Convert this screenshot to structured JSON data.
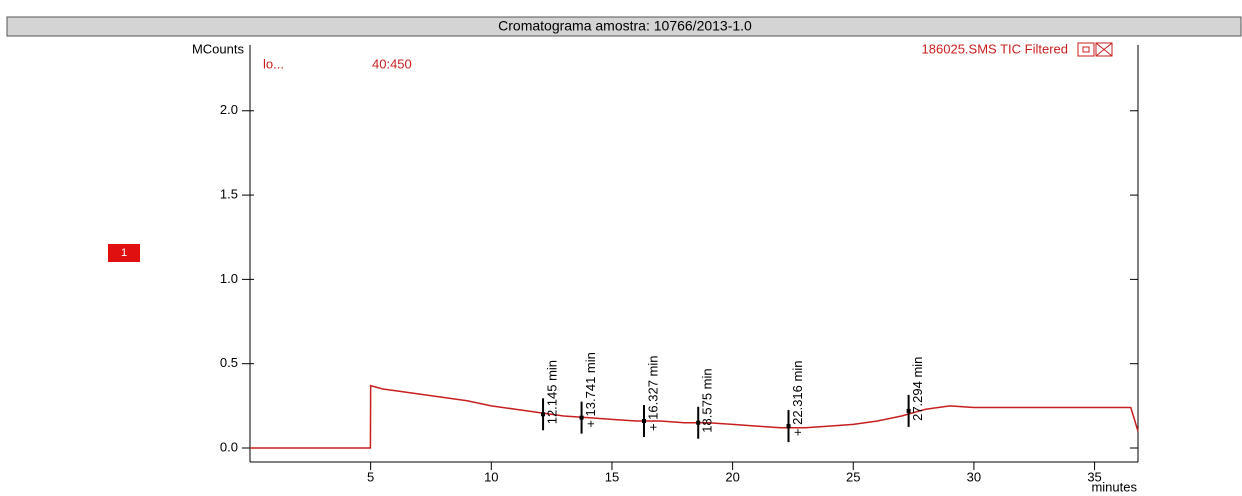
{
  "chart_data": {
    "type": "line",
    "title": "Cromatograma amostra: 10766/2013-1.0",
    "y_label": "MCounts",
    "x_label": "minutes",
    "channel": "lo...",
    "ion_range": "40:450",
    "file_label": "186025.SMS TIC Filtered",
    "trace_marker": "1",
    "xlim": [
      0,
      36.8
    ],
    "ylim": [
      -0.083,
      2.39
    ],
    "xticks": [
      5,
      10,
      15,
      20,
      25,
      30,
      35
    ],
    "yticks": [
      {
        "value": 0,
        "label": "0.0"
      },
      {
        "value": 0.5,
        "label": "0.5"
      },
      {
        "value": 1,
        "label": "1.0"
      },
      {
        "value": 1.5,
        "label": "1.5"
      },
      {
        "value": 2,
        "label": "2.0"
      }
    ],
    "series": [
      {
        "color": "#c81e1e",
        "x": [
          0,
          4.99,
          5,
          5.5,
          6,
          7,
          8,
          9,
          10,
          11,
          12,
          13,
          14,
          15,
          16,
          17,
          18,
          19,
          20,
          21,
          22,
          23,
          24,
          25,
          26,
          27,
          28,
          29,
          30,
          31,
          32,
          33,
          34,
          35,
          36,
          36.5,
          36.8
        ],
        "values": [
          0,
          0,
          0.37,
          0.35,
          0.34,
          0.32,
          0.3,
          0.28,
          0.25,
          0.23,
          0.21,
          0.19,
          0.18,
          0.17,
          0.16,
          0.16,
          0.15,
          0.15,
          0.14,
          0.13,
          0.12,
          0.12,
          0.13,
          0.14,
          0.16,
          0.19,
          0.23,
          0.25,
          0.24,
          0.24,
          0.24,
          0.24,
          0.24,
          0.24,
          0.24,
          0.24,
          0.1
        ]
      }
    ],
    "peaks": [
      {
        "label": "12.145 min",
        "time": 12.145,
        "height": 0.2
      },
      {
        "label": "+ 13.741 min",
        "time": 13.741,
        "height": 0.18
      },
      {
        "label": "+ 16.327 min",
        "time": 16.327,
        "height": 0.16
      },
      {
        "label": "18.575 min",
        "time": 18.575,
        "height": 0.15
      },
      {
        "label": "+ 22.316 min",
        "time": 22.316,
        "height": 0.13
      },
      {
        "label": "27.294 min",
        "time": 27.294,
        "height": 0.22
      }
    ]
  }
}
